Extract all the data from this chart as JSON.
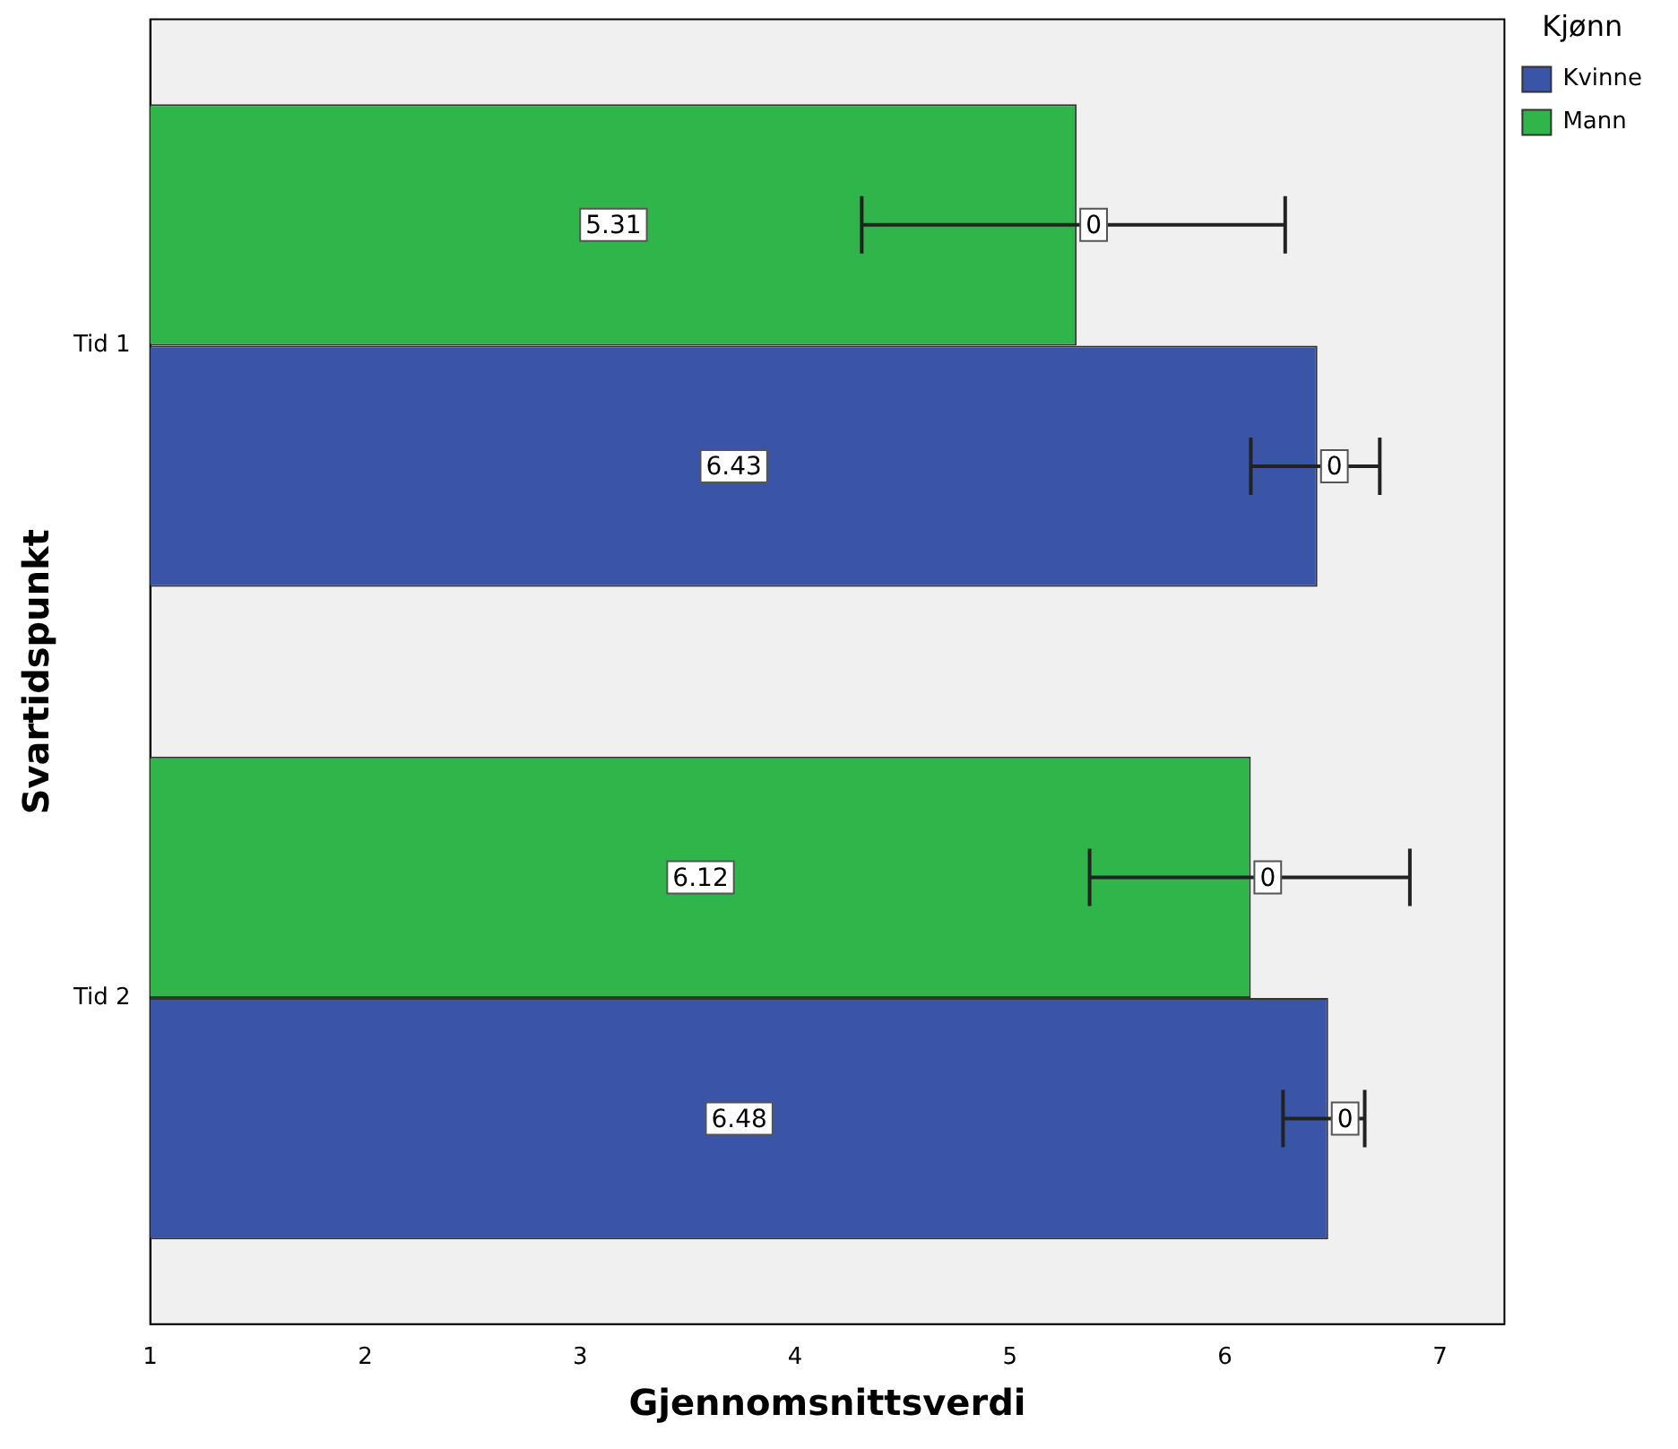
{
  "chart_data": {
    "type": "bar",
    "orientation": "horizontal",
    "xlabel": "Gjennomsnittsverdi",
    "ylabel": "Svartidspunkt",
    "legend_title": "Kjønn",
    "legend": "top right",
    "categories": [
      "Tid 1",
      "Tid 2"
    ],
    "series": [
      {
        "name": "Mann",
        "color": "#2fb54a",
        "values": [
          5.31,
          6.12
        ],
        "errors": [
          [
            4.31,
            6.28
          ],
          [
            5.37,
            6.86
          ]
        ]
      },
      {
        "name": "Kvinne",
        "color": "#3a55a8",
        "values": [
          6.43,
          6.48
        ],
        "errors": [
          [
            6.12,
            6.72
          ],
          [
            6.27,
            6.65
          ]
        ]
      }
    ],
    "data_labels": true,
    "annotations": [
      "0",
      "0",
      "0",
      "0"
    ],
    "xlim": [
      1,
      7.3
    ],
    "xticks": [
      1,
      2,
      3,
      4,
      5,
      6,
      7
    ],
    "grid": false
  }
}
